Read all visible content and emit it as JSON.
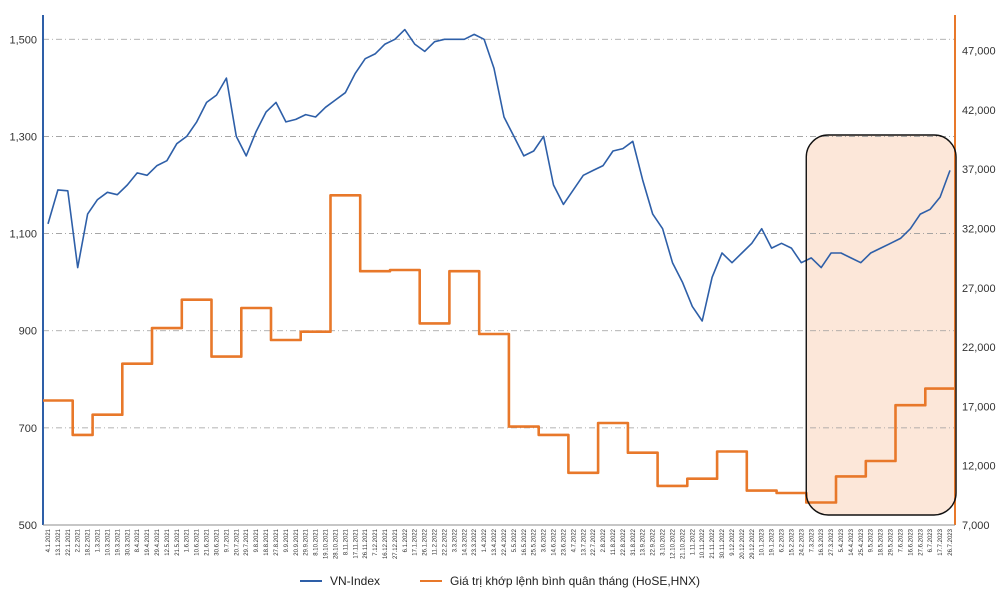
{
  "chart_data": {
    "type": "line",
    "title": "",
    "colors": {
      "vnindex": "#2E5FA8",
      "value": "#E8782A",
      "highlight_fill": "#FBE3D2",
      "grid": "#9A9A9A"
    },
    "left_axis": {
      "ylim": [
        500,
        1550
      ],
      "ticks": [
        "500",
        "700",
        "900",
        "1,100",
        "1,300",
        "1,500"
      ]
    },
    "right_axis": {
      "ylim": [
        7000,
        50000
      ],
      "ticks": [
        "7,000",
        "12,000",
        "17,000",
        "22,000",
        "27,000",
        "32,000",
        "37,000",
        "42,000",
        "47,000"
      ]
    },
    "x_labels": [
      "4.1.2021",
      "13.1.2021",
      "22.1.2021",
      "2.2.2021",
      "18.2.2021",
      "1.3.2021",
      "10.3.2021",
      "19.3.2021",
      "30.3.2021",
      "8.4.2021",
      "19.4.2021",
      "29.4.2021",
      "12.5.2021",
      "21.5.2021",
      "1.6.2021",
      "10.6.2021",
      "21.6.2021",
      "30.6.2021",
      "9.7.2021",
      "20.7.2021",
      "29.7.2021",
      "9.8.2021",
      "18.8.2021",
      "27.8.2021",
      "9.9.2021",
      "20.9.2021",
      "29.9.2021",
      "8.10.2021",
      "19.10.2021",
      "28.10.2021",
      "8.11.2021",
      "17.11.2021",
      "26.11.2021",
      "7.12.2021",
      "16.12.2021",
      "27.12.2021",
      "6.1.2022",
      "17.1.2022",
      "26.1.2022",
      "11.2.2022",
      "22.2.2022",
      "3.3.2022",
      "14.3.2022",
      "23.3.2022",
      "1.4.2022",
      "13.4.2022",
      "22.4.2022",
      "5.5.2022",
      "16.5.2022",
      "25.5.2022",
      "3.6.2022",
      "14.6.2022",
      "23.6.2022",
      "4.7.2022",
      "13.7.2022",
      "22.7.2022",
      "2.8.2022",
      "11.8.2022",
      "22.8.2022",
      "31.8.2022",
      "13.9.2022",
      "22.9.2022",
      "3.10.2022",
      "12.10.2022",
      "21.10.2022",
      "1.11.2022",
      "10.11.2022",
      "21.11.2022",
      "30.11.2022",
      "9.12.2022",
      "20.12.2022",
      "29.12.2022",
      "10.1.2023",
      "19.1.2023",
      "6.2.2023",
      "15.2.2023",
      "24.2.2023",
      "7.3.2023",
      "16.3.2023",
      "27.3.2023",
      "5.4.2023",
      "14.4.2023",
      "25.4.2023",
      "9.5.2023",
      "18.5.2023",
      "29.5.2023",
      "7.6.2023",
      "16.6.2023",
      "27.6.2023",
      "6.7.2023",
      "17.7.2023",
      "26.7.2023"
    ],
    "highlight": {
      "from_index": 77,
      "to_index": 91
    },
    "series": [
      {
        "name": "VN-Index",
        "axis": "left",
        "values": [
          1120,
          1190,
          1188,
          1030,
          1140,
          1170,
          1185,
          1180,
          1200,
          1225,
          1220,
          1240,
          1250,
          1285,
          1300,
          1330,
          1370,
          1385,
          1420,
          1300,
          1260,
          1310,
          1350,
          1370,
          1330,
          1335,
          1345,
          1340,
          1360,
          1375,
          1390,
          1430,
          1460,
          1470,
          1490,
          1500,
          1520,
          1490,
          1475,
          1495,
          1500,
          1500,
          1500,
          1510,
          1500,
          1440,
          1340,
          1300,
          1260,
          1270,
          1300,
          1200,
          1160,
          1190,
          1220,
          1230,
          1240,
          1270,
          1275,
          1290,
          1210,
          1140,
          1110,
          1040,
          1000,
          950,
          920,
          1010,
          1060,
          1040,
          1060,
          1080,
          1110,
          1070,
          1080,
          1070,
          1040,
          1050,
          1030,
          1060,
          1060,
          1050,
          1040,
          1060,
          1070,
          1080,
          1090,
          1110,
          1140,
          1150,
          1175,
          1230
        ]
      },
      {
        "name": "Giá trị khớp lệnh bình quân tháng (HoSE,HNX)",
        "axis": "right",
        "values": [
          17500,
          17500,
          17500,
          14600,
          14600,
          16300,
          16300,
          16300,
          20600,
          20600,
          20600,
          23600,
          23600,
          23600,
          26000,
          26000,
          26000,
          21200,
          21200,
          21200,
          25300,
          25300,
          25300,
          22600,
          22600,
          22600,
          23300,
          23300,
          23300,
          34800,
          34800,
          34800,
          28400,
          28400,
          28400,
          28500,
          28500,
          28500,
          24000,
          24000,
          24000,
          28400,
          28400,
          28400,
          23100,
          23100,
          23100,
          15300,
          15300,
          15300,
          14600,
          14600,
          14600,
          11400,
          11400,
          11400,
          15600,
          15600,
          15600,
          13100,
          13100,
          13100,
          10300,
          10300,
          10300,
          10900,
          10900,
          10900,
          13200,
          13200,
          13200,
          9900,
          9900,
          9900,
          9700,
          9700,
          9700,
          8900,
          8900,
          8900,
          11100,
          11100,
          11100,
          12400,
          12400,
          12400,
          17100,
          17100,
          17100,
          18500,
          18500,
          18500
        ]
      }
    ],
    "legend": [
      "VN-Index",
      "Giá trị khớp lệnh bình quân tháng (HoSE,HNX)"
    ],
    "legend_position": "bottom"
  }
}
